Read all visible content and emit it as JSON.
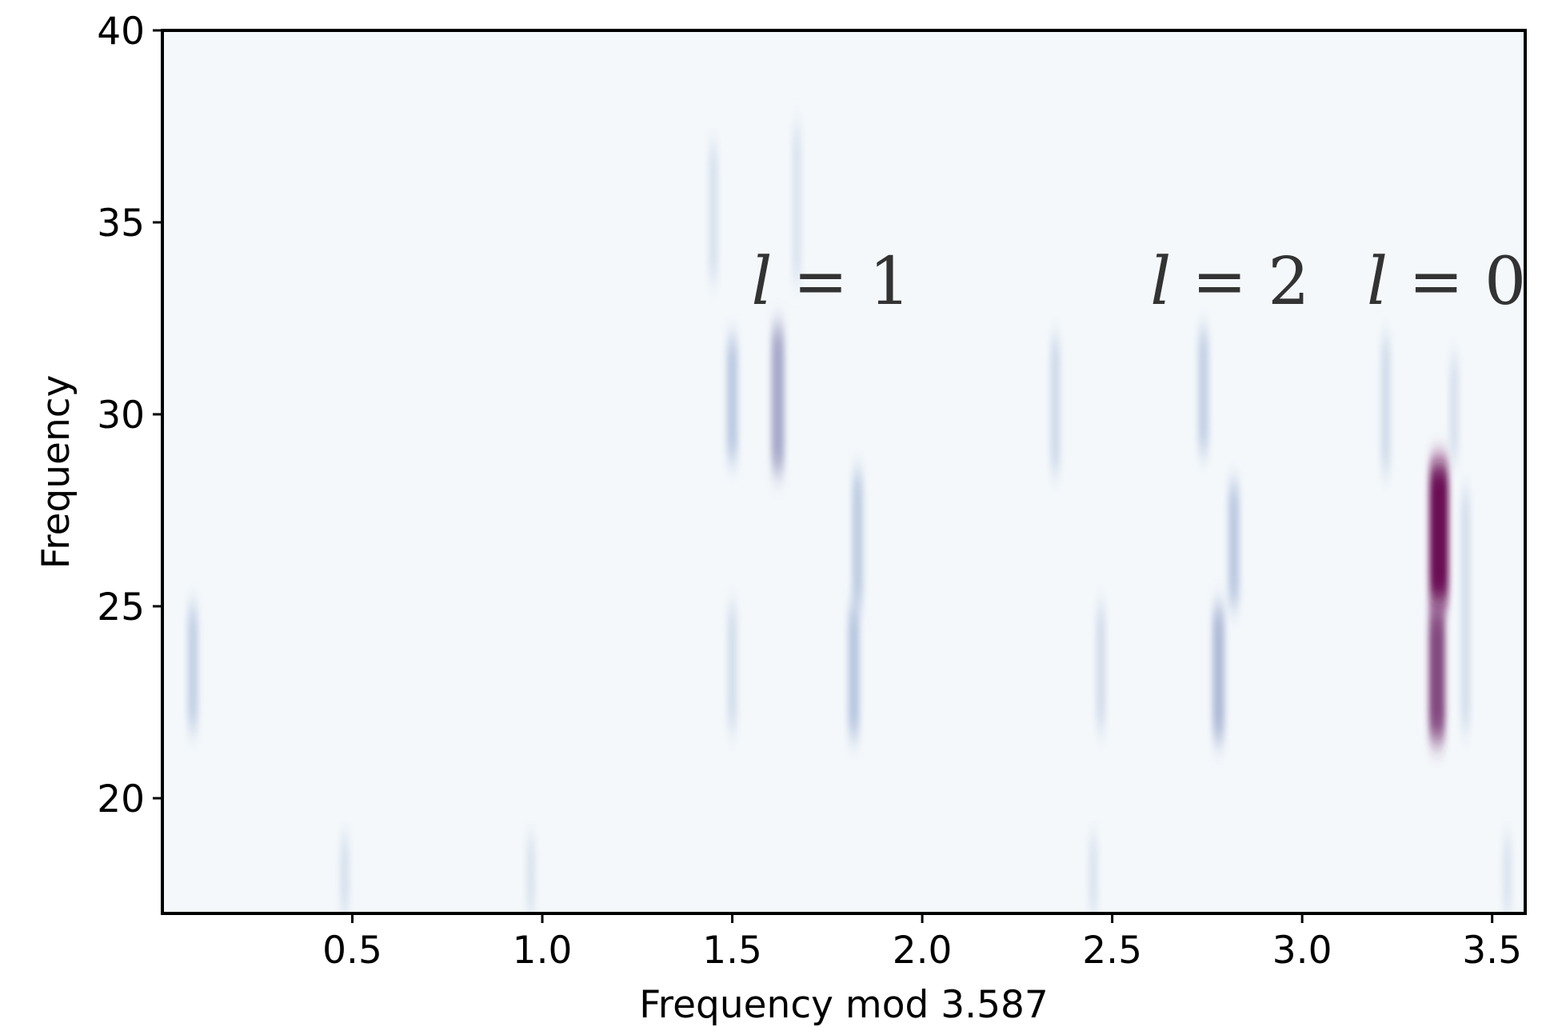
{
  "chart_data": {
    "type": "heatmap",
    "title": "",
    "xlabel": "Frequency mod 3.587",
    "ylabel": "Frequency",
    "xlim": [
      0.0,
      3.587
    ],
    "ylim": [
      17.0,
      40.0
    ],
    "x_ticks": [
      0.5,
      1.0,
      1.5,
      2.0,
      2.5,
      3.0,
      3.5
    ],
    "x_tick_labels": [
      "0.5",
      "1.0",
      "1.5",
      "2.0",
      "2.5",
      "3.0",
      "3.5"
    ],
    "y_ticks": [
      20,
      25,
      30,
      35,
      40
    ],
    "y_tick_labels": [
      "20",
      "25",
      "30",
      "35",
      "40"
    ],
    "grid": false,
    "colormap": "white-blue-purple",
    "colors": {
      "low": "#f4f8fb",
      "mid": "#8ea6cd",
      "high": "#6b0f55"
    },
    "annotations": [
      {
        "var": "l",
        "op": "=",
        "num": "1",
        "x": 1.55,
        "y": 33.5
      },
      {
        "var": "l",
        "op": "=",
        "num": "2",
        "x": 2.6,
        "y": 33.5
      },
      {
        "var": "l",
        "op": "=",
        "num": "0",
        "x": 3.17,
        "y": 33.5
      }
    ],
    "ridges": [
      {
        "x": 3.36,
        "y_range": [
          25.0,
          28.8
        ],
        "intensity": 1.0
      },
      {
        "x": 3.355,
        "y_range": [
          21.5,
          25.0
        ],
        "intensity": 0.75
      },
      {
        "x": 1.62,
        "y_range": [
          28.5,
          32.3
        ],
        "intensity": 0.45
      },
      {
        "x": 1.5,
        "y_range": [
          28.8,
          32.0
        ],
        "intensity": 0.3
      },
      {
        "x": 2.78,
        "y_range": [
          21.5,
          25.0
        ],
        "intensity": 0.38
      },
      {
        "x": 2.82,
        "y_range": [
          25.0,
          28.2
        ],
        "intensity": 0.3
      },
      {
        "x": 2.74,
        "y_range": [
          29.0,
          32.2
        ],
        "intensity": 0.25
      },
      {
        "x": 1.82,
        "y_range": [
          21.6,
          25.0
        ],
        "intensity": 0.32
      },
      {
        "x": 1.83,
        "y_range": [
          25.0,
          28.5
        ],
        "intensity": 0.28
      },
      {
        "x": 0.08,
        "y_range": [
          21.8,
          25.0
        ],
        "intensity": 0.25
      },
      {
        "x": 2.35,
        "y_range": [
          28.5,
          32.0
        ],
        "intensity": 0.18
      },
      {
        "x": 2.47,
        "y_range": [
          21.8,
          25.0
        ],
        "intensity": 0.15
      },
      {
        "x": 1.5,
        "y_range": [
          21.8,
          25.0
        ],
        "intensity": 0.15
      },
      {
        "x": 3.22,
        "y_range": [
          28.5,
          32.0
        ],
        "intensity": 0.16
      },
      {
        "x": 1.45,
        "y_range": [
          33.5,
          37.0
        ],
        "intensity": 0.12
      },
      {
        "x": 1.67,
        "y_range": [
          33.5,
          37.5
        ],
        "intensity": 0.1
      },
      {
        "x": 3.43,
        "y_range": [
          21.8,
          28.0
        ],
        "intensity": 0.14
      },
      {
        "x": 3.4,
        "y_range": [
          28.8,
          31.5
        ],
        "intensity": 0.12
      },
      {
        "x": 0.48,
        "y_range": [
          17.0,
          19.0
        ],
        "intensity": 0.12
      },
      {
        "x": 0.97,
        "y_range": [
          17.0,
          19.0
        ],
        "intensity": 0.1
      },
      {
        "x": 2.45,
        "y_range": [
          17.0,
          19.0
        ],
        "intensity": 0.1
      },
      {
        "x": 3.54,
        "y_range": [
          17.0,
          19.0
        ],
        "intensity": 0.1
      }
    ]
  }
}
